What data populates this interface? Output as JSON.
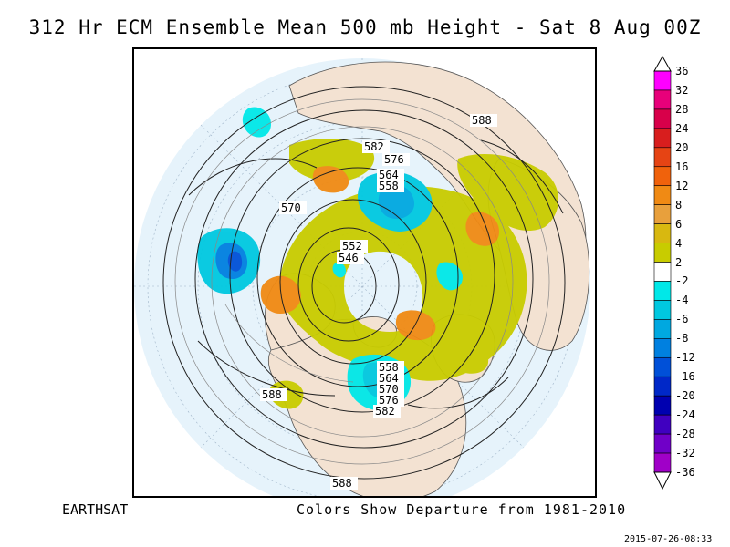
{
  "title": "312 Hr ECM Ensemble Mean 500 mb Height - Sat 8 Aug 00Z",
  "branding": "EARTHSAT",
  "colors_note": "Colors Show Departure from 1981-2010",
  "timestamp": "2015-07-26-08:33",
  "contour_labels": [
    "588",
    "582",
    "576",
    "564",
    "558",
    "570",
    "552",
    "546",
    "588",
    "558",
    "564",
    "570",
    "576",
    "582",
    "588"
  ],
  "colorbar": {
    "labels": [
      "36",
      "32",
      "28",
      "24",
      "20",
      "16",
      "12",
      "8",
      "6",
      "4",
      "2",
      "-2",
      "-4",
      "-6",
      "-8",
      "-12",
      "-16",
      "-20",
      "-24",
      "-28",
      "-32",
      "-36"
    ],
    "colors": [
      "#ff00ff",
      "#e8007a",
      "#d8004a",
      "#d81e1e",
      "#e64414",
      "#f0620c",
      "#f08a14",
      "#e8a03c",
      "#d8b810",
      "#c8cc00",
      "#ffffff",
      "#00e8e8",
      "#00c8e0",
      "#00a8e0",
      "#0080e0",
      "#0050d8",
      "#0028c8",
      "#0000b0",
      "#4000c0",
      "#7000c8",
      "#a000c8"
    ],
    "arrow_top_color": "#ffffff",
    "arrow_bottom_color": "#ffffff"
  },
  "map": {
    "ocean_color": "#e6f3fb",
    "land_color": "#f3e2d2",
    "outer_color": "#ffffff"
  }
}
